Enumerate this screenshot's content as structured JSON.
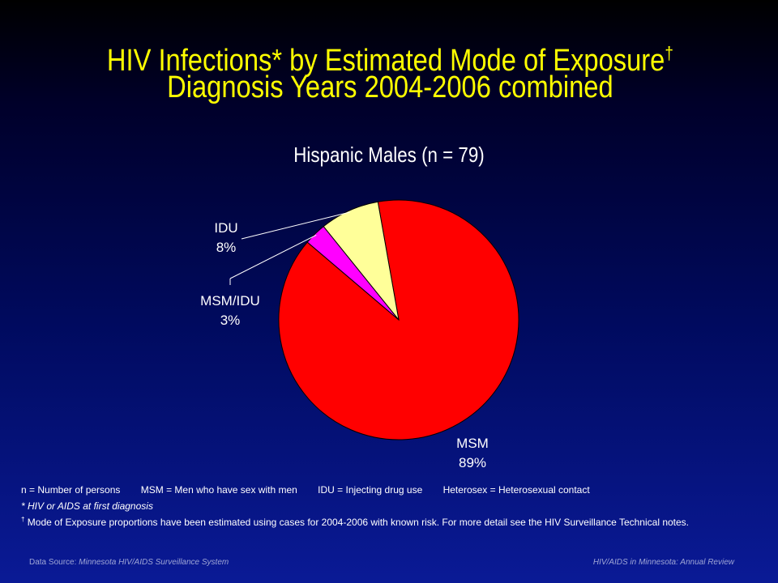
{
  "title": {
    "line1": "HIV Infections* by Estimated Mode of Exposure",
    "line1_mark": "†",
    "line2": "Diagnosis Years 2004-2006 combined"
  },
  "chart_data": {
    "type": "pie",
    "title": "Hispanic Males (n = 79)",
    "slices": [
      {
        "name": "MSM",
        "value": 89,
        "label": "89%",
        "color": "#ff0000"
      },
      {
        "name": "MSM/IDU",
        "value": 3,
        "label": "3%",
        "color": "#ff00ff"
      },
      {
        "name": "IDU",
        "value": 8,
        "label": "8%",
        "color": "#ffff99"
      }
    ]
  },
  "notes": {
    "defs": [
      "n = Number of persons",
      "MSM = Men who have sex with men",
      "IDU = Injecting drug use",
      "Heterosex = Heterosexual contact"
    ],
    "asterisk": "* HIV or AIDS at first diagnosis",
    "dagger_mark": "†",
    "dagger": " Mode of Exposure proportions have been estimated using cases for 2004-2006  with known risk. For more detail see the HIV Surveillance Technical notes."
  },
  "footer": {
    "source_prefix": "Data Source: ",
    "source": "Minnesota HIV/AIDS Surveillance  System",
    "right": "HIV/AIDS in Minnesota: Annual Review"
  },
  "colors": {
    "title": "#ffff00",
    "text": "#ffffff"
  }
}
